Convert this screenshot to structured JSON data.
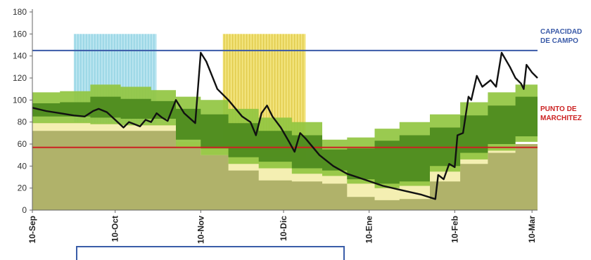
{
  "chart_data": {
    "type": "line",
    "title": "",
    "xlabel": "",
    "ylabel": "",
    "ylim": [
      0,
      180
    ],
    "y_ticks": [
      0,
      20,
      40,
      60,
      80,
      100,
      120,
      140,
      160,
      180
    ],
    "x_range": [
      "2000-09-10",
      "2001-03-12"
    ],
    "x_ticks": [
      {
        "label": "10-Sep",
        "date": "2000-09-10"
      },
      {
        "label": "10-Oct",
        "date": "2000-10-10"
      },
      {
        "label": "10-Nov",
        "date": "2000-11-10"
      },
      {
        "label": "10-Dic",
        "date": "2000-12-10"
      },
      {
        "label": "10-Ene",
        "date": "2001-01-10"
      },
      {
        "label": "10-Feb",
        "date": "2001-02-10"
      },
      {
        "label": "10-Mar",
        "date": "2001-03-10"
      }
    ],
    "reference_lines": [
      {
        "label": "CAPACIDAD DE CAMPO",
        "label_lines": [
          "CAPACIDAD",
          "DE CAMPO"
        ],
        "value": 145,
        "color": "#3a5aa8"
      },
      {
        "label": "PUNTO DE MARCHITEZ",
        "label_lines": [
          "PUNTO DE",
          "MARCHITEZ"
        ],
        "value": 57,
        "color": "#cc2222"
      }
    ],
    "shaded_periods": [
      {
        "start": "2000-09-25",
        "end": "2000-10-25",
        "top": 160,
        "color": "#b8e4ef",
        "stripe": "#7ac8dc"
      },
      {
        "start": "2000-11-18",
        "end": "2000-12-18",
        "top": 160,
        "color": "#f1e27a",
        "stripe": "#d8bd2e"
      }
    ],
    "bands": [
      {
        "name": "",
        "color": "#f4efb2",
        "x": [
          "2000-09-10",
          "2000-09-20",
          "2000-10-01",
          "2000-10-12",
          "2000-10-23",
          "2000-11-01",
          "2000-11-10",
          "2000-11-20",
          "2000-12-01",
          "2000-12-13",
          "2000-12-24",
          "2001-01-02",
          "2001-01-12",
          "2001-01-21",
          "2001-02-01",
          "2001-02-12",
          "2001-02-22",
          "2001-03-04",
          "2001-03-12"
        ],
        "upper": [
          80,
          80,
          79,
          78,
          78,
          62,
          57,
          50,
          48,
          46,
          45,
          46,
          47,
          49,
          51,
          53,
          55,
          60,
          60
        ],
        "lower": [
          0,
          0,
          0,
          0,
          0,
          0,
          0,
          0,
          0,
          0,
          0,
          0,
          0,
          0,
          0,
          0,
          0,
          0,
          0
        ]
      },
      {
        "name": "",
        "color": "#a9ad64",
        "x": [
          "2000-09-10",
          "2000-09-20",
          "2000-10-01",
          "2000-10-12",
          "2000-10-23",
          "2000-11-01",
          "2000-11-10",
          "2000-11-20",
          "2000-12-01",
          "2000-12-13",
          "2000-12-24",
          "2001-01-02",
          "2001-01-12",
          "2001-01-21",
          "2001-02-01",
          "2001-02-12",
          "2001-02-22",
          "2001-03-04",
          "2001-03-12"
        ],
        "upper": [
          72,
          72,
          72,
          72,
          72,
          57,
          50,
          36,
          27,
          26,
          24,
          12,
          9,
          10,
          26,
          42,
          52,
          60,
          60
        ],
        "lower": [
          0,
          0,
          0,
          0,
          0,
          0,
          0,
          0,
          0,
          0,
          0,
          0,
          0,
          0,
          0,
          0,
          0,
          0,
          0
        ]
      },
      {
        "name": "",
        "color": "#91c541",
        "x": [
          "2000-09-10",
          "2000-09-20",
          "2000-10-01",
          "2000-10-12",
          "2000-10-23",
          "2000-11-01",
          "2000-11-10",
          "2000-11-20",
          "2000-12-01",
          "2000-12-13",
          "2000-12-24",
          "2001-01-02",
          "2001-01-12",
          "2001-01-21",
          "2001-02-01",
          "2001-02-12",
          "2001-02-22",
          "2001-03-04",
          "2001-03-12"
        ],
        "upper": [
          107,
          108,
          114,
          112,
          109,
          103,
          100,
          92,
          84,
          80,
          64,
          66,
          74,
          80,
          87,
          98,
          107,
          114,
          118
        ],
        "lower": [
          79,
          79,
          78,
          77,
          77,
          57,
          50,
          42,
          38,
          33,
          31,
          24,
          20,
          22,
          35,
          46,
          54,
          62,
          62
        ]
      },
      {
        "name": "",
        "color": "#4c8a1d",
        "x": [
          "2000-09-10",
          "2000-09-20",
          "2000-10-01",
          "2000-10-12",
          "2000-10-23",
          "2000-11-01",
          "2000-11-10",
          "2000-11-20",
          "2000-12-01",
          "2000-12-13",
          "2000-12-24",
          "2001-01-02",
          "2001-01-12",
          "2001-01-21",
          "2001-02-01",
          "2001-02-12",
          "2001-02-22",
          "2001-03-04",
          "2001-03-12"
        ],
        "upper": [
          97,
          98,
          103,
          101,
          99,
          92,
          87,
          79,
          72,
          68,
          55,
          56,
          63,
          68,
          75,
          86,
          95,
          103,
          108
        ],
        "lower": [
          85,
          85,
          84,
          83,
          83,
          64,
          56,
          48,
          44,
          38,
          36,
          28,
          24,
          26,
          40,
          52,
          60,
          67,
          67
        ]
      }
    ],
    "series": [
      {
        "name": "",
        "color": "#111111",
        "points": [
          [
            "2000-09-10",
            93
          ],
          [
            "2000-09-15",
            90
          ],
          [
            "2000-09-20",
            88
          ],
          [
            "2000-09-25",
            86
          ],
          [
            "2000-09-29",
            85
          ],
          [
            "2000-10-02",
            90
          ],
          [
            "2000-10-04",
            92
          ],
          [
            "2000-10-07",
            89
          ],
          [
            "2000-10-10",
            82
          ],
          [
            "2000-10-13",
            75
          ],
          [
            "2000-10-15",
            80
          ],
          [
            "2000-10-17",
            78
          ],
          [
            "2000-10-19",
            76
          ],
          [
            "2000-10-21",
            82
          ],
          [
            "2000-10-23",
            80
          ],
          [
            "2000-10-25",
            88
          ],
          [
            "2000-10-27",
            84
          ],
          [
            "2000-10-29",
            81
          ],
          [
            "2000-11-01",
            100
          ],
          [
            "2000-11-04",
            88
          ],
          [
            "2000-11-08",
            79
          ],
          [
            "2000-11-10",
            143
          ],
          [
            "2000-11-12",
            135
          ],
          [
            "2000-11-16",
            110
          ],
          [
            "2000-11-20",
            100
          ],
          [
            "2000-11-25",
            85
          ],
          [
            "2000-11-28",
            80
          ],
          [
            "2000-11-30",
            68
          ],
          [
            "2000-12-02",
            88
          ],
          [
            "2000-12-04",
            95
          ],
          [
            "2000-12-06",
            85
          ],
          [
            "2000-12-09",
            75
          ],
          [
            "2000-12-12",
            62
          ],
          [
            "2000-12-14",
            53
          ],
          [
            "2000-12-16",
            70
          ],
          [
            "2000-12-18",
            65
          ],
          [
            "2000-12-23",
            50
          ],
          [
            "2000-12-28",
            40
          ],
          [
            "2001-01-02",
            33
          ],
          [
            "2001-01-08",
            28
          ],
          [
            "2001-01-15",
            22
          ],
          [
            "2001-01-22",
            18
          ],
          [
            "2001-01-29",
            14
          ],
          [
            "2001-02-03",
            10
          ],
          [
            "2001-02-04",
            32
          ],
          [
            "2001-02-06",
            28
          ],
          [
            "2001-02-08",
            42
          ],
          [
            "2001-02-10",
            39
          ],
          [
            "2001-02-11",
            68
          ],
          [
            "2001-02-13",
            70
          ],
          [
            "2001-02-15",
            103
          ],
          [
            "2001-02-16",
            100
          ],
          [
            "2001-02-18",
            122
          ],
          [
            "2001-02-20",
            112
          ],
          [
            "2001-02-23",
            118
          ],
          [
            "2001-02-25",
            112
          ],
          [
            "2001-02-27",
            143
          ],
          [
            "2001-03-02",
            130
          ],
          [
            "2001-03-04",
            120
          ],
          [
            "2001-03-06",
            115
          ],
          [
            "2001-03-07",
            110
          ],
          [
            "2001-03-08",
            132
          ],
          [
            "2001-03-10",
            125
          ],
          [
            "2001-03-12",
            120
          ]
        ]
      }
    ],
    "grid": false,
    "legend": "none"
  }
}
